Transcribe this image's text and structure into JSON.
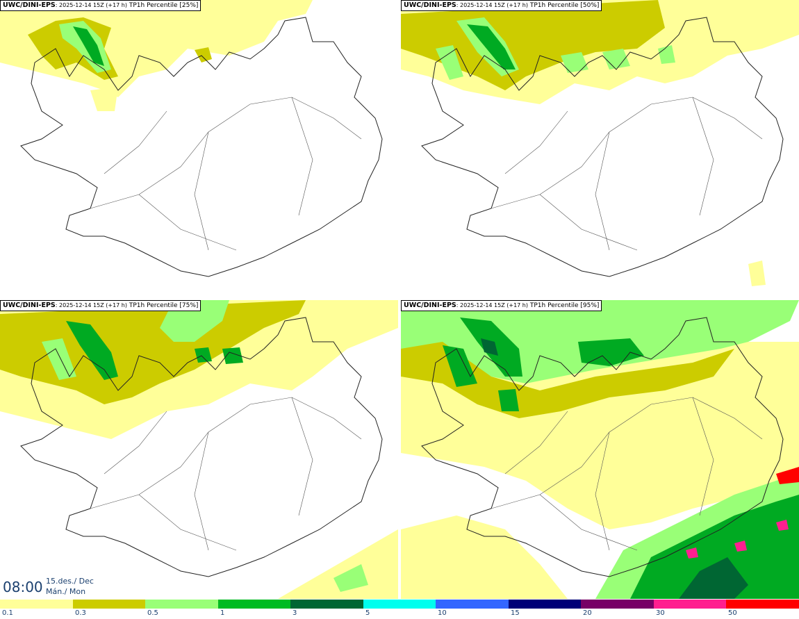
{
  "panels": [
    {
      "model": "UWC/DINI-EPS",
      "meta": ": 2025-12-14 15Z (+17 h)",
      "field": "TP1h Percentile [25%]"
    },
    {
      "model": "UWC/DINI-EPS",
      "meta": ": 2025-12-14 15Z (+17 h)",
      "field": "TP1h Percentile [50%]"
    },
    {
      "model": "UWC/DINI-EPS",
      "meta": ": 2025-12-14 15Z (+17 h)",
      "field": "TP1h Percentile [75%]"
    },
    {
      "model": "UWC/DINI-EPS",
      "meta": ": 2025-12-14 15Z (+17 h)",
      "field": "TP1h Percentile [95%]"
    }
  ],
  "valid_time": {
    "time": "08:00",
    "date": "15.des./ Dec",
    "day": "Mán./ Mon"
  },
  "colorbar": {
    "labels": [
      "0.1",
      "0.3",
      "0.5",
      "1",
      "3",
      "5",
      "10",
      "15",
      "20",
      "30",
      "50"
    ],
    "colors": [
      "#ffff99",
      "#cccc00",
      "#99ff77",
      "#00bb22",
      "#006633",
      "#00ffee",
      "#3366ff",
      "#000077",
      "#770066",
      "#ff1f8f",
      "#ff0000"
    ]
  },
  "map_colors": {
    "light_yellow": "#ffff99",
    "olive": "#cccc00",
    "light_green": "#99ff77",
    "green": "#00aa22",
    "dark_green": "#006633",
    "outline": "#222222",
    "roads": "#555555"
  }
}
